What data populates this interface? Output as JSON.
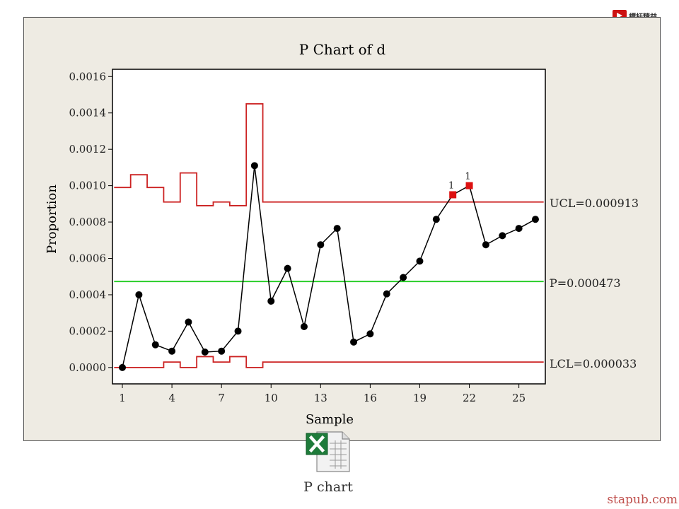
{
  "logo": {
    "text": "標杆精益"
  },
  "icon": {
    "name": "excel-file-icon",
    "caption": "P chart"
  },
  "watermark": "stapub.com",
  "chart_data": {
    "type": "line",
    "title": "P Chart of d",
    "xlabel": "Sample",
    "ylabel": "Proportion",
    "xlim": [
      0.4,
      26.6
    ],
    "ylim": [
      -9e-05,
      0.00164
    ],
    "x_ticks": [
      1,
      4,
      7,
      10,
      13,
      16,
      19,
      22,
      25
    ],
    "y_ticks": [
      0.0,
      0.0002,
      0.0004,
      0.0006,
      0.0008,
      0.001,
      0.0012,
      0.0014,
      0.0016
    ],
    "y_tick_labels": [
      "0.0000",
      "0.0002",
      "0.0004",
      "0.0006",
      "0.0008",
      "0.0010",
      "0.0012",
      "0.0014",
      "0.0016"
    ],
    "grid": false,
    "series": [
      {
        "values": [
          0.0,
          0.0004,
          0.000125,
          9e-05,
          0.00025,
          8.5e-05,
          9e-05,
          0.0002,
          0.00111,
          0.000365,
          0.000545,
          0.000225,
          0.000675,
          0.000765,
          0.00014,
          0.000185,
          0.000405,
          0.000495,
          0.000585,
          0.000815,
          0.00095,
          0.001,
          0.000675,
          0.000725,
          0.000765,
          0.000815
        ],
        "color": "#000000"
      }
    ],
    "out_of_control": [
      {
        "sample": 21,
        "label": "1"
      },
      {
        "sample": 22,
        "label": "1"
      }
    ],
    "center_line": {
      "value": 0.000473,
      "label_bar": "_",
      "label": "P=0.000473",
      "color": "#22cc22"
    },
    "ucl": {
      "label": "UCL=0.000913",
      "color": "#cc2222",
      "values": [
        0.00099,
        0.00106,
        0.00099,
        0.00091,
        0.00107,
        0.00089,
        0.00091,
        0.00089,
        0.00145,
        0.00091,
        0.00091,
        0.00091,
        0.00091,
        0.00091,
        0.00091,
        0.00091,
        0.00091,
        0.00091,
        0.00091,
        0.00091,
        0.00091,
        0.00091,
        0.00091,
        0.00091,
        0.00091,
        0.00091
      ]
    },
    "lcl": {
      "label": "LCL=0.000033",
      "color": "#cc2222",
      "values": [
        0.0,
        0.0,
        0.0,
        3e-05,
        0.0,
        6e-05,
        3e-05,
        6e-05,
        0.0,
        3e-05,
        3e-05,
        3e-05,
        3e-05,
        3e-05,
        3e-05,
        3e-05,
        3e-05,
        3e-05,
        3e-05,
        3e-05,
        3e-05,
        3e-05,
        3e-05,
        3e-05,
        3e-05,
        3e-05
      ]
    }
  }
}
